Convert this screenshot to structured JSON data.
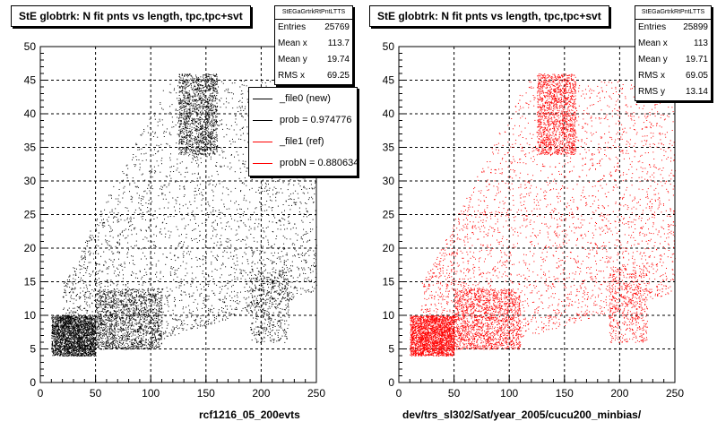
{
  "pads": [
    {
      "title": "StE globtrk: N fit pnts vs length, tpc,tpc+svt",
      "stats": {
        "name": "StEGaGrtrkRtPntLTTS",
        "rows": [
          {
            "label": "Entries",
            "value": "25769"
          },
          {
            "label": "Mean x",
            "value": "113.7"
          },
          {
            "label": "Mean y",
            "value": "19.74"
          },
          {
            "label": "RMS x",
            "value": "69.25"
          }
        ]
      },
      "legend": [
        {
          "label": "_file0 (new)",
          "color": "#000000"
        },
        {
          "label": "prob = 0.974776",
          "color": "#000000"
        },
        {
          "label": "_file1 (ref)",
          "color": "#ff0000"
        },
        {
          "label": "probN = 0.880634",
          "color": "#ff0000"
        }
      ],
      "xtitle": "rcf1216_05_200evts",
      "marker_color": "#000000"
    },
    {
      "title": "StE globtrk: N fit pnts vs length, tpc,tpc+svt",
      "stats": {
        "name": "StEGaGrtrkRtPntLTTS",
        "rows": [
          {
            "label": "Entries",
            "value": "25899"
          },
          {
            "label": "Mean x",
            "value": "113"
          },
          {
            "label": "Mean y",
            "value": "19.71"
          },
          {
            "label": "RMS x",
            "value": "69.05"
          },
          {
            "label": "RMS y",
            "value": "13.14"
          }
        ]
      },
      "xtitle": "dev/trs_sl302/Sat/year_2005/cucu200_minbias/",
      "marker_color": "#ff0000"
    }
  ],
  "chart_data": [
    {
      "type": "scatter",
      "title": "StE globtrk: N fit pnts vs length, tpc,tpc+svt",
      "xlabel": "rcf1216_05_200evts",
      "ylabel": "",
      "xlim": [
        0,
        250
      ],
      "ylim": [
        0,
        50
      ],
      "xticks": [
        0,
        50,
        100,
        150,
        200,
        250
      ],
      "yticks": [
        0,
        5,
        10,
        15,
        20,
        25,
        30,
        35,
        40,
        45,
        50
      ],
      "grid": true,
      "color": "#000000",
      "entries": 25769,
      "density_regions": [
        {
          "x": [
            10,
            50
          ],
          "y": [
            4,
            10
          ],
          "density": "very high"
        },
        {
          "x": [
            50,
            110
          ],
          "y": [
            5,
            14
          ],
          "density": "high"
        },
        {
          "x": [
            125,
            160
          ],
          "y": [
            34,
            46
          ],
          "density": "high"
        },
        {
          "x": [
            20,
            250
          ],
          "y": [
            5,
            45
          ],
          "density": "sparse"
        },
        {
          "x": [
            190,
            225
          ],
          "y": [
            6,
            17
          ],
          "density": "medium"
        }
      ]
    },
    {
      "type": "scatter",
      "title": "StE globtrk: N fit pnts vs length, tpc,tpc+svt",
      "xlabel": "dev/trs_sl302/Sat/year_2005/cucu200_minbias/",
      "ylabel": "",
      "xlim": [
        0,
        250
      ],
      "ylim": [
        0,
        50
      ],
      "xticks": [
        0,
        50,
        100,
        150,
        200,
        250
      ],
      "yticks": [
        0,
        5,
        10,
        15,
        20,
        25,
        30,
        35,
        40,
        45,
        50
      ],
      "grid": true,
      "color": "#ff0000",
      "entries": 25899,
      "density_regions": [
        {
          "x": [
            10,
            50
          ],
          "y": [
            4,
            10
          ],
          "density": "very high"
        },
        {
          "x": [
            50,
            110
          ],
          "y": [
            5,
            14
          ],
          "density": "high"
        },
        {
          "x": [
            125,
            160
          ],
          "y": [
            34,
            46
          ],
          "density": "high"
        },
        {
          "x": [
            20,
            250
          ],
          "y": [
            5,
            45
          ],
          "density": "sparse"
        },
        {
          "x": [
            190,
            225
          ],
          "y": [
            6,
            17
          ],
          "density": "medium"
        }
      ]
    }
  ]
}
